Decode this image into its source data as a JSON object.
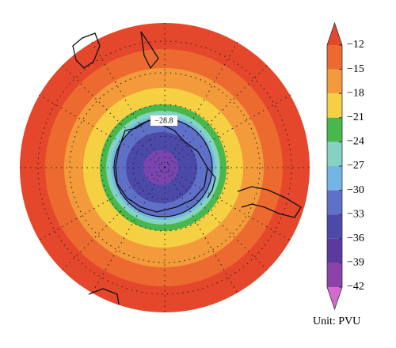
{
  "map": {
    "contour_label": "−28.8"
  },
  "colorbar": {
    "ticks": [
      {
        "value": -12,
        "label": "−12"
      },
      {
        "value": -15,
        "label": "−15"
      },
      {
        "value": -18,
        "label": "−18"
      },
      {
        "value": -21,
        "label": "−21"
      },
      {
        "value": -24,
        "label": "−24"
      },
      {
        "value": -27,
        "label": "−27"
      },
      {
        "value": -30,
        "label": "−30"
      },
      {
        "value": -33,
        "label": "−33"
      },
      {
        "value": -36,
        "label": "−36"
      },
      {
        "value": -39,
        "label": "−39"
      },
      {
        "value": -42,
        "label": "−42"
      }
    ],
    "colors": [
      "#e4472b",
      "#ec6a30",
      "#f39a3a",
      "#f6d043",
      "#49b84c",
      "#84d2c2",
      "#73b6e6",
      "#5f70c9",
      "#4b4aa8",
      "#5a3a9c",
      "#8c43a9",
      "#d66ad0"
    ],
    "unit_label": "Unit: PVU"
  }
}
